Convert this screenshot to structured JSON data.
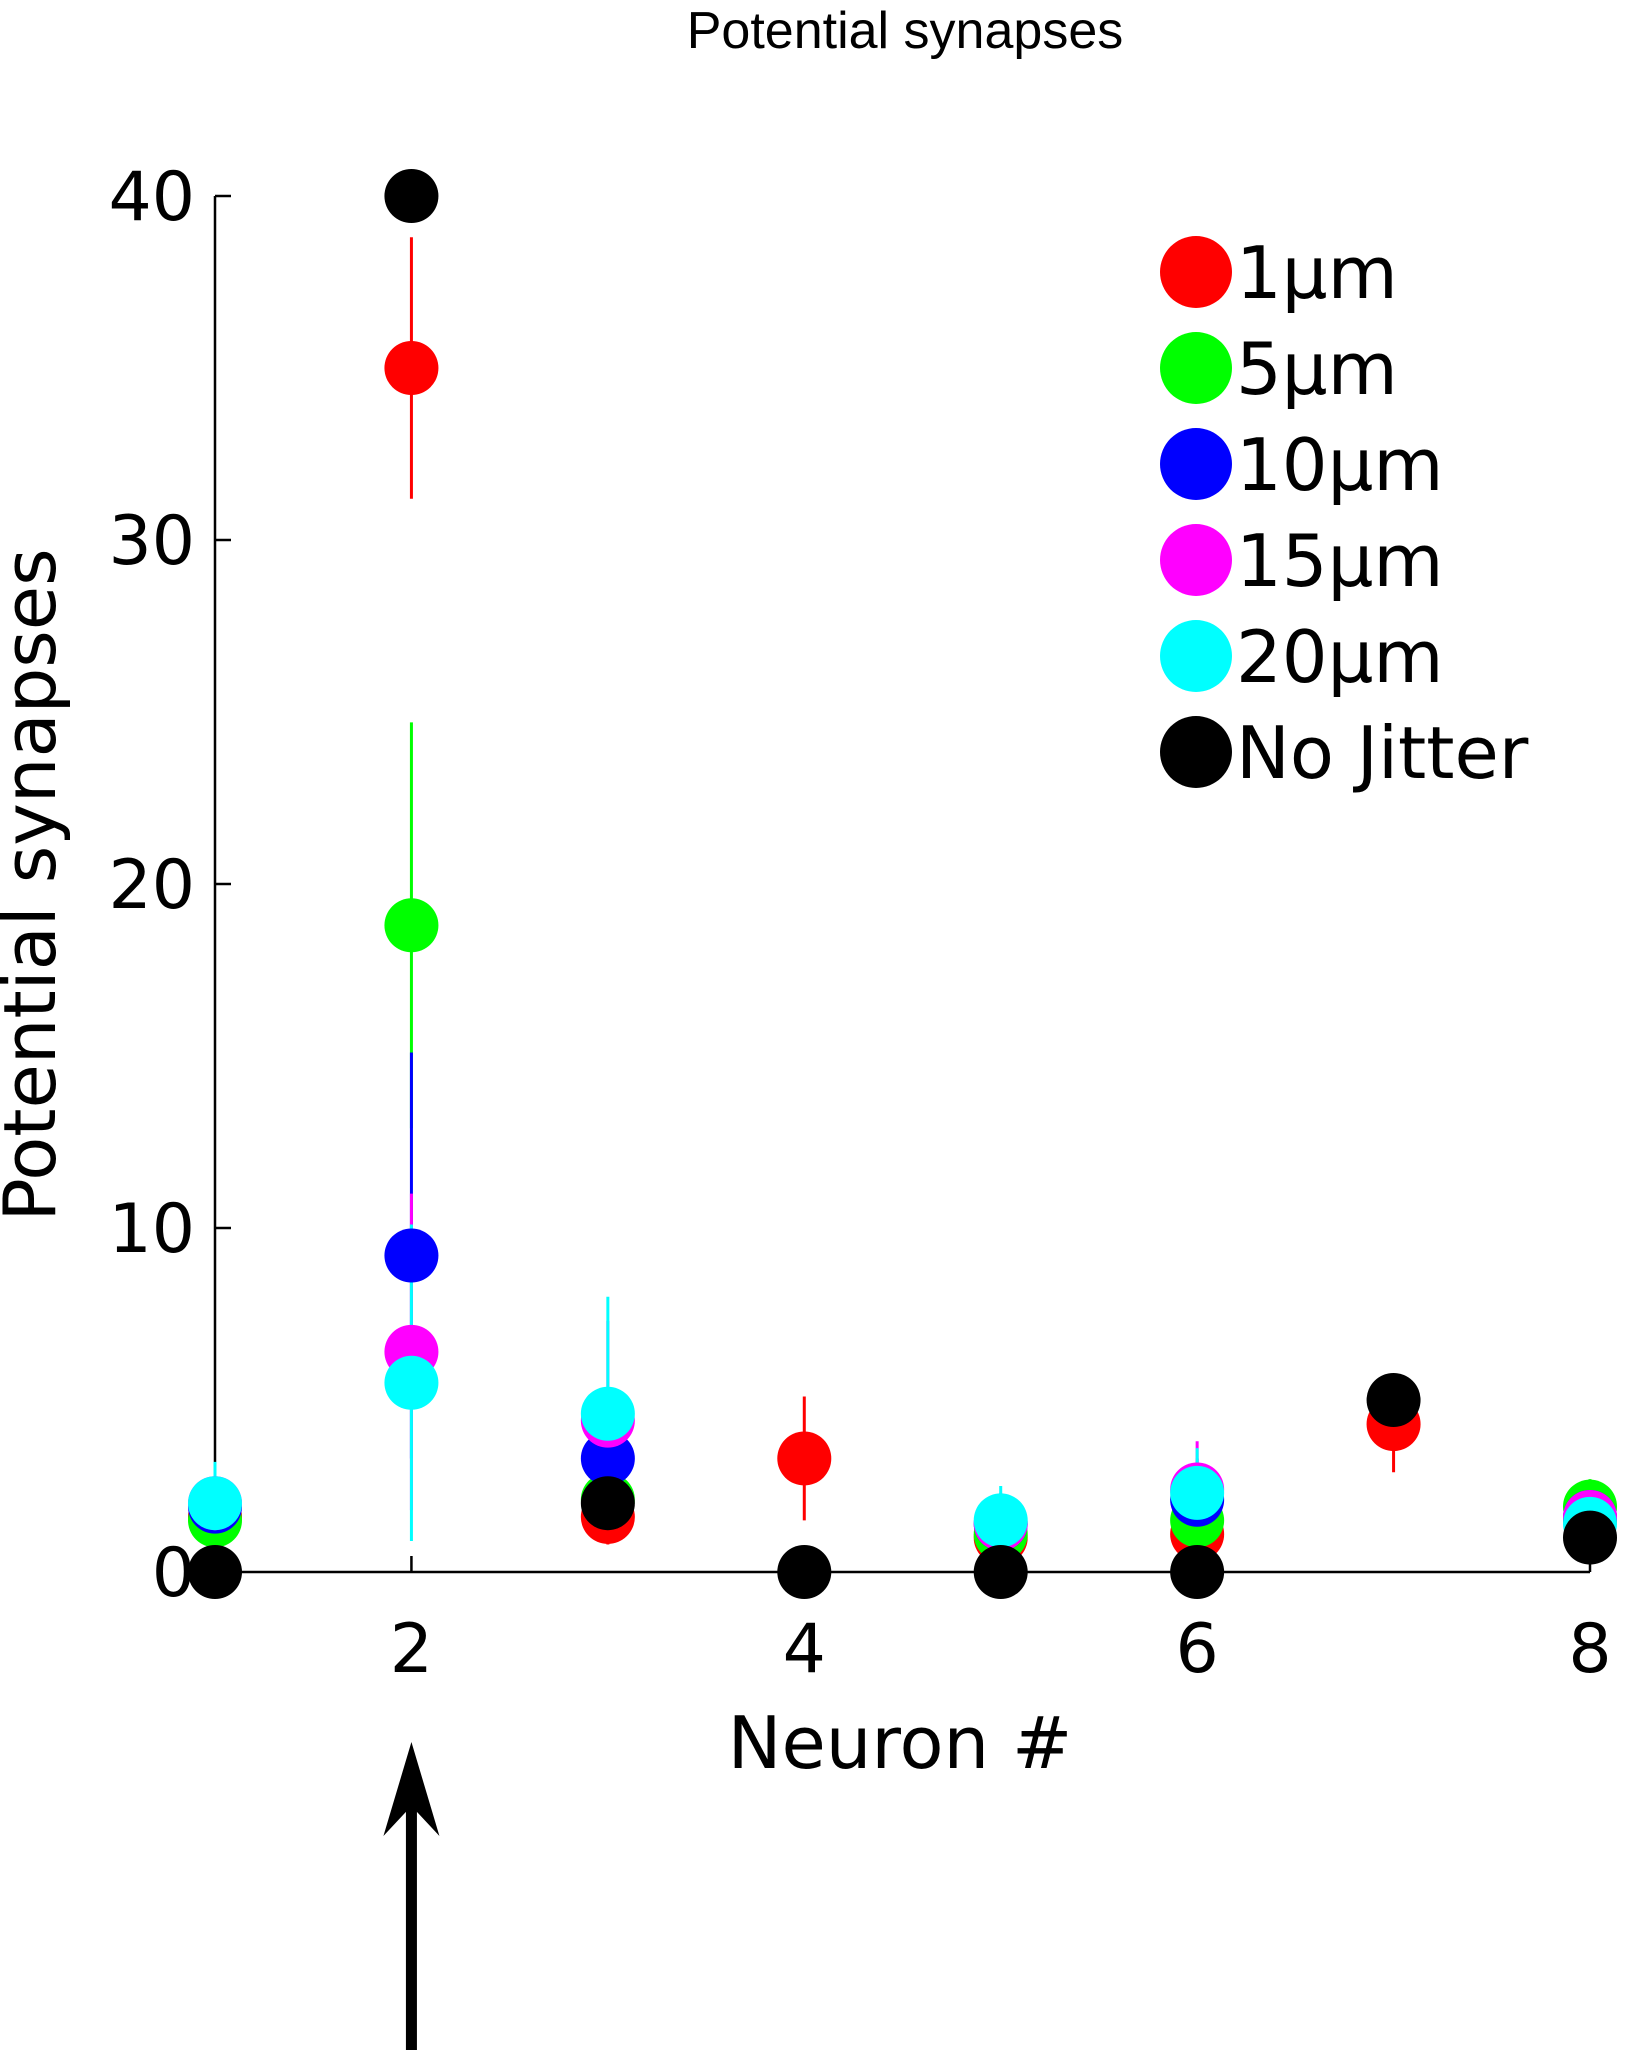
{
  "chart_data": {
    "type": "scatter",
    "title": "Potential synapses",
    "xlabel": "Neuron #",
    "ylabel": "Potential synapses",
    "xlim": [
      1,
      8
    ],
    "ylim": [
      0,
      40
    ],
    "x_ticks": [
      2,
      4,
      6,
      8
    ],
    "y_ticks": [
      0,
      10,
      20,
      30,
      40
    ],
    "grid": false,
    "legend": "top-right",
    "series": [
      {
        "name": "1μm",
        "color": "#ff0000",
        "points": [
          {
            "x": 1,
            "y": 1.6,
            "err": 1.0
          },
          {
            "x": 2,
            "y": 35.0,
            "err": 3.8
          },
          {
            "x": 3,
            "y": 1.6,
            "err": 0.8
          },
          {
            "x": 4,
            "y": 3.3,
            "err": 1.8
          },
          {
            "x": 5,
            "y": 1.0,
            "err": 0.5
          },
          {
            "x": 6,
            "y": 1.1,
            "err": 0.6
          },
          {
            "x": 7,
            "y": 4.3,
            "err": 1.4
          },
          {
            "x": 8,
            "y": 1.5,
            "err": 0.7
          }
        ]
      },
      {
        "name": "5μm",
        "color": "#00ff00",
        "points": [
          {
            "x": 1,
            "y": 1.5,
            "err": 1.0
          },
          {
            "x": 2,
            "y": 18.8,
            "err": 5.9
          },
          {
            "x": 3,
            "y": 2.1,
            "err": 1.2
          },
          {
            "x": 5,
            "y": 1.1,
            "err": 0.6
          },
          {
            "x": 6,
            "y": 1.5,
            "err": 1.0
          },
          {
            "x": 8,
            "y": 1.9,
            "err": 0.8
          }
        ]
      },
      {
        "name": "10μm",
        "color": "#0000ff",
        "points": [
          {
            "x": 1,
            "y": 1.9,
            "err": 1.1
          },
          {
            "x": 2,
            "y": 9.2,
            "err": 5.9
          },
          {
            "x": 3,
            "y": 3.3,
            "err": 2.0
          },
          {
            "x": 5,
            "y": 1.4,
            "err": 0.8
          },
          {
            "x": 6,
            "y": 2.1,
            "err": 1.2
          },
          {
            "x": 8,
            "y": 1.6,
            "err": 0.8
          }
        ]
      },
      {
        "name": "15μm",
        "color": "#ff00ff",
        "points": [
          {
            "x": 1,
            "y": 2.0,
            "err": 1.1
          },
          {
            "x": 2,
            "y": 6.4,
            "err": 4.6
          },
          {
            "x": 3,
            "y": 4.4,
            "err": 2.9
          },
          {
            "x": 5,
            "y": 1.4,
            "err": 0.9
          },
          {
            "x": 6,
            "y": 2.4,
            "err": 1.4
          },
          {
            "x": 8,
            "y": 1.6,
            "err": 0.8
          }
        ]
      },
      {
        "name": "20μm",
        "color": "#00ffff",
        "points": [
          {
            "x": 1,
            "y": 2.0,
            "err": 1.2
          },
          {
            "x": 2,
            "y": 5.5,
            "err": 4.6
          },
          {
            "x": 3,
            "y": 4.6,
            "err": 3.4
          },
          {
            "x": 5,
            "y": 1.5,
            "err": 1.0
          },
          {
            "x": 6,
            "y": 2.3,
            "err": 1.3
          },
          {
            "x": 8,
            "y": 1.4,
            "err": 0.8
          }
        ]
      },
      {
        "name": "No Jitter",
        "color": "#000000",
        "points": [
          {
            "x": 1,
            "y": 0
          },
          {
            "x": 2,
            "y": 40
          },
          {
            "x": 3,
            "y": 2.0
          },
          {
            "x": 4,
            "y": 0
          },
          {
            "x": 5,
            "y": 0
          },
          {
            "x": 6,
            "y": 0
          },
          {
            "x": 7,
            "y": 5.0
          },
          {
            "x": 8,
            "y": 1.0
          }
        ]
      }
    ],
    "annotation": {
      "type": "arrow",
      "x": 2,
      "direction": "up"
    }
  }
}
